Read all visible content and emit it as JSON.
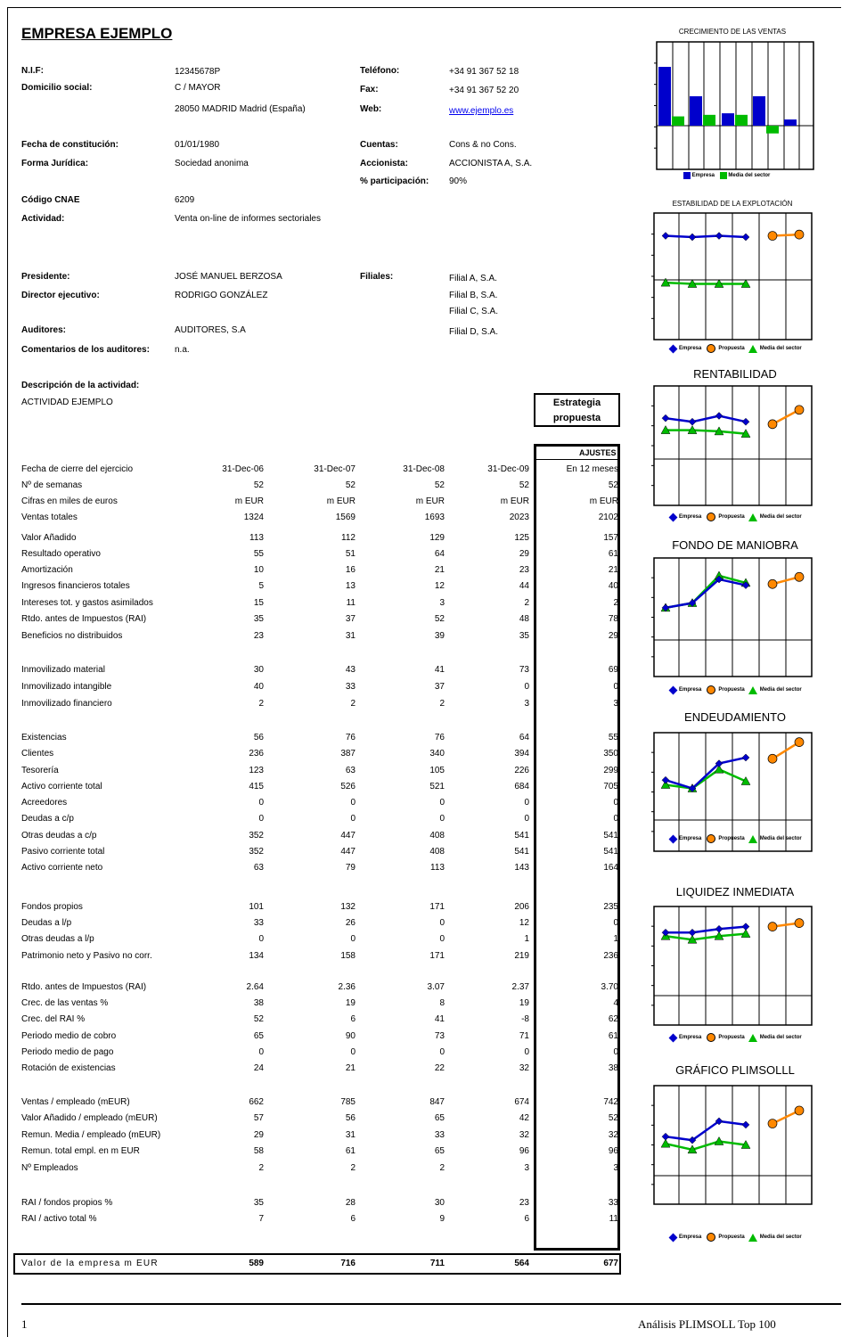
{
  "company": {
    "name": "EMPRESA EJEMPLO",
    "nif_label": "N.I.F:",
    "nif": "12345678P",
    "domicilio_label": "Domicilio social:",
    "domicilio1": "C / MAYOR",
    "domicilio2": "28050 MADRID Madrid (España)",
    "telefono_label": "Teléfono:",
    "telefono": "+34 91 367 52 18",
    "fax_label": "Fax:",
    "fax": "+34 91 367 52 20",
    "web_label": "Web:",
    "web": "www.ejemplo.es",
    "fecha_label": "Fecha de constitución:",
    "fecha": "01/01/1980",
    "forma_label": "Forma Jurídica:",
    "forma": "Sociedad anonima",
    "cuentas_label": "Cuentas:",
    "cuentas": "Cons & no Cons.",
    "accionista_label": "Accionista:",
    "accionista": "ACCIONISTA A, S.A.",
    "participacion_label": "% participación:",
    "participacion": "90%",
    "cnae_label": "Código CNAE",
    "cnae": "6209",
    "actividad_label": "Actividad:",
    "actividad": "Venta on-line de informes sectoriales",
    "presidente_label": "Presidente:",
    "presidente": "JOSÉ MANUEL BERZOSA",
    "director_label": "Director ejecutivo:",
    "director": "RODRIGO GONZÁLEZ",
    "filiales_label": "Filiales:",
    "filiales": [
      "Filial A, S.A.",
      "Filial B, S.A.",
      "Filial C, S.A.",
      "Filial D, S.A."
    ],
    "auditores_label": "Auditores:",
    "auditores": "AUDITORES, S.A",
    "comentarios_label": "Comentarios de los auditores:",
    "comentarios": "n.a.",
    "descripcion_label": "Descripción de la actividad:",
    "descripcion": "ACTIVIDAD EJEMPLO"
  },
  "strategy_box": "Estrategia propuesta",
  "ajustes_label": "AJUSTES",
  "table": {
    "rows": [
      {
        "label": "Fecha de cierre del ejercicio",
        "values": [
          "31-Dec-06",
          "31-Dec-07",
          "31-Dec-08",
          "31-Dec-09",
          "En 12 meses"
        ]
      },
      {
        "label": "Nº de semanas",
        "values": [
          "52",
          "52",
          "52",
          "52",
          "52"
        ]
      },
      {
        "label": "Cifras en miles de euros",
        "values": [
          "m EUR",
          "m EUR",
          "m EUR",
          "m EUR",
          "m EUR"
        ]
      },
      {
        "label": "Ventas totales",
        "values": [
          "1324",
          "1569",
          "1693",
          "2023",
          "2102"
        ]
      },
      {
        "label": "Valor Añadido",
        "values": [
          "113",
          "112",
          "129",
          "125",
          "157"
        ]
      },
      {
        "label": "Resultado operativo",
        "values": [
          "55",
          "51",
          "64",
          "29",
          "61"
        ]
      },
      {
        "label": "Amortización",
        "values": [
          "10",
          "16",
          "21",
          "23",
          "21"
        ]
      },
      {
        "label": "Ingresos financieros totales",
        "values": [
          "5",
          "13",
          "12",
          "44",
          "40"
        ]
      },
      {
        "label": "Intereses tot. y gastos asimilados",
        "values": [
          "15",
          "11",
          "3",
          "2",
          "2"
        ]
      },
      {
        "label": "Rtdo. antes de Impuestos (RAI)",
        "values": [
          "35",
          "37",
          "52",
          "48",
          "78"
        ]
      },
      {
        "label": "Beneficios no distribuidos",
        "values": [
          "23",
          "31",
          "39",
          "35",
          "29"
        ]
      },
      {
        "label": "Inmovilizado material",
        "values": [
          "30",
          "43",
          "41",
          "73",
          "69"
        ]
      },
      {
        "label": "Inmovilizado intangible",
        "values": [
          "40",
          "33",
          "37",
          "0",
          "0"
        ]
      },
      {
        "label": "Inmovilizado financiero",
        "values": [
          "2",
          "2",
          "2",
          "3",
          "3"
        ]
      },
      {
        "label": "Existencias",
        "values": [
          "56",
          "76",
          "76",
          "64",
          "55"
        ]
      },
      {
        "label": "Clientes",
        "values": [
          "236",
          "387",
          "340",
          "394",
          "350"
        ]
      },
      {
        "label": "Tesorería",
        "values": [
          "123",
          "63",
          "105",
          "226",
          "299"
        ]
      },
      {
        "label": "Activo corriente total",
        "values": [
          "415",
          "526",
          "521",
          "684",
          "705"
        ]
      },
      {
        "label": "Acreedores",
        "values": [
          "0",
          "0",
          "0",
          "0",
          "0"
        ]
      },
      {
        "label": "Deudas a c/p",
        "values": [
          "0",
          "0",
          "0",
          "0",
          "0"
        ]
      },
      {
        "label": "Otras deudas a c/p",
        "values": [
          "352",
          "447",
          "408",
          "541",
          "541"
        ]
      },
      {
        "label": "Pasivo corriente total",
        "values": [
          "352",
          "447",
          "408",
          "541",
          "541"
        ]
      },
      {
        "label": "Activo corriente neto",
        "values": [
          "63",
          "79",
          "113",
          "143",
          "164"
        ]
      },
      {
        "label": "Fondos propios",
        "values": [
          "101",
          "132",
          "171",
          "206",
          "235"
        ]
      },
      {
        "label": "Deudas a l/p",
        "values": [
          "33",
          "26",
          "0",
          "12",
          "0"
        ]
      },
      {
        "label": "Otras deudas a l/p",
        "values": [
          "0",
          "0",
          "0",
          "1",
          "1"
        ]
      },
      {
        "label": "Patrimonio neto y Pasivo no corr.",
        "values": [
          "134",
          "158",
          "171",
          "219",
          "236"
        ]
      },
      {
        "label": "Rtdo. antes de Impuestos (RAI)",
        "values": [
          "2.64",
          "2.36",
          "3.07",
          "2.37",
          "3.70"
        ]
      },
      {
        "label": "Crec. de las ventas %",
        "values": [
          "38",
          "19",
          "8",
          "19",
          "4"
        ]
      },
      {
        "label": "Crec. del RAI %",
        "values": [
          "52",
          "6",
          "41",
          "-8",
          "62"
        ]
      },
      {
        "label": "Periodo medio de cobro",
        "values": [
          "65",
          "90",
          "73",
          "71",
          "61"
        ]
      },
      {
        "label": "Periodo medio de pago",
        "values": [
          "0",
          "0",
          "0",
          "0",
          "0"
        ]
      },
      {
        "label": "Rotación de existencias",
        "values": [
          "24",
          "21",
          "22",
          "32",
          "38"
        ]
      },
      {
        "label": "Ventas / empleado (mEUR)",
        "values": [
          "662",
          "785",
          "847",
          "674",
          "742"
        ]
      },
      {
        "label": "Valor Añadido / empleado (mEUR)",
        "values": [
          "57",
          "56",
          "65",
          "42",
          "52"
        ]
      },
      {
        "label": "Remun. Media / empleado (mEUR)",
        "values": [
          "29",
          "31",
          "33",
          "32",
          "32"
        ]
      },
      {
        "label": "Remun. total empl. en m EUR",
        "values": [
          "58",
          "61",
          "65",
          "96",
          "96"
        ]
      },
      {
        "label": "Nº Empleados",
        "values": [
          "2",
          "2",
          "2",
          "3",
          "3"
        ]
      },
      {
        "label": "RAI / fondos propios %",
        "values": [
          "35",
          "28",
          "30",
          "23",
          "33"
        ]
      },
      {
        "label": "RAI / activo total %",
        "values": [
          "7",
          "6",
          "9",
          "6",
          "11"
        ]
      }
    ],
    "valor": {
      "label": "Valor de la empresa m EUR",
      "values": [
        "589",
        "716",
        "711",
        "564",
        "677"
      ]
    }
  },
  "legend": {
    "empresa": "Empresa",
    "propuesta": "Propuesta",
    "media": "Media del sector"
  },
  "colors": {
    "empresa": "#0000cc",
    "media": "#00bb00",
    "propuesta": "#ff8800"
  },
  "chart_data": [
    {
      "type": "bar",
      "title": "CRECIMIENTO DE LAS VENTAS",
      "series": [
        {
          "name": "Empresa",
          "values": [
            38,
            19,
            8,
            19,
            4
          ]
        },
        {
          "name": "Media del sector",
          "values": [
            6,
            7,
            7,
            -5,
            null
          ]
        }
      ]
    },
    {
      "type": "line",
      "title": "ESTABILIDAD DE LA EXPLOTACIÓN",
      "series": [
        {
          "name": "Empresa",
          "values": [
            0.82,
            0.81,
            0.82,
            0.81
          ]
        },
        {
          "name": "Propuesta",
          "values": [
            0.82,
            0.83
          ]
        },
        {
          "name": "Media del sector",
          "values": [
            0.45,
            0.44,
            0.44,
            0.44
          ]
        }
      ]
    },
    {
      "type": "line",
      "title": "RENTABILIDAD",
      "series": [
        {
          "name": "Empresa",
          "values": [
            0.73,
            0.7,
            0.75,
            0.7
          ]
        },
        {
          "name": "Propuesta",
          "values": [
            0.68,
            0.8
          ]
        },
        {
          "name": "Media del sector",
          "values": [
            0.63,
            0.63,
            0.62,
            0.6
          ]
        }
      ]
    },
    {
      "type": "line",
      "title": "FONDO DE MANIOBRA",
      "series": [
        {
          "name": "Empresa",
          "values": [
            0.58,
            0.62,
            0.82,
            0.77
          ]
        },
        {
          "name": "Propuesta",
          "values": [
            0.78,
            0.84
          ]
        },
        {
          "name": "Media del sector",
          "values": [
            0.58,
            0.62,
            0.85,
            0.79
          ]
        }
      ]
    },
    {
      "type": "line",
      "title": "ENDEUDAMIENTO",
      "series": [
        {
          "name": "Empresa",
          "values": [
            0.6,
            0.53,
            0.74,
            0.79
          ]
        },
        {
          "name": "Propuesta",
          "values": [
            0.78,
            0.92
          ]
        },
        {
          "name": "Media del sector",
          "values": [
            0.56,
            0.53,
            0.69,
            0.59
          ]
        }
      ]
    },
    {
      "type": "line",
      "title": "LIQUIDEZ INMEDIATA",
      "series": [
        {
          "name": "Empresa",
          "values": [
            0.78,
            0.78,
            0.81,
            0.83
          ]
        },
        {
          "name": "Propuesta",
          "values": [
            0.83,
            0.86
          ]
        },
        {
          "name": "Media del sector",
          "values": [
            0.75,
            0.72,
            0.75,
            0.77
          ]
        }
      ]
    },
    {
      "type": "line",
      "title": "GRÁFICO PLIMSOLLL",
      "series": [
        {
          "name": "Empresa",
          "values": [
            0.57,
            0.54,
            0.7,
            0.67
          ]
        },
        {
          "name": "Propuesta",
          "values": [
            0.68,
            0.79
          ]
        },
        {
          "name": "Media del sector",
          "values": [
            0.51,
            0.46,
            0.53,
            0.5
          ]
        }
      ]
    }
  ],
  "footer": {
    "page": "1",
    "right": "Análisis PLIMSOLL Top 100"
  }
}
